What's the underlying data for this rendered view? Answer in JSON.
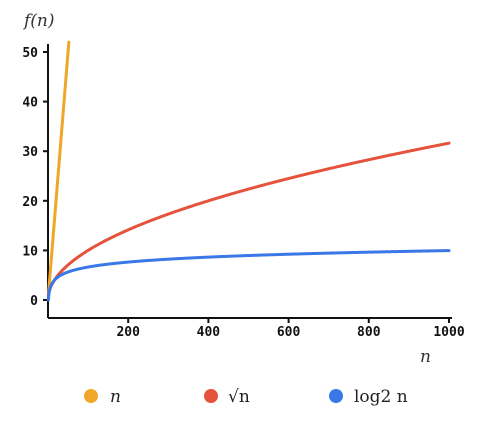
{
  "chart_data": {
    "type": "line",
    "ylabel": "f(n)",
    "xlabel": "n",
    "xlim": [
      0,
      1010
    ],
    "ylim": [
      -3.5,
      52
    ],
    "x_ticks": [
      200,
      400,
      600,
      800,
      1000
    ],
    "x_tick_labels": [
      "200",
      "400",
      "600",
      "800",
      "1000"
    ],
    "y_ticks": [
      0,
      10,
      20,
      30,
      40,
      50
    ],
    "y_tick_labels": [
      "0",
      "10",
      "20",
      "30",
      "40",
      "50"
    ],
    "grid": false,
    "legend_position": "bottom",
    "series": [
      {
        "name": "n",
        "color": "#f0a629",
        "function": "n",
        "x": [
          1,
          10,
          20,
          30,
          40,
          50
        ],
        "y": [
          1,
          10,
          20,
          30,
          40,
          50
        ]
      },
      {
        "name": "√n",
        "color": "#e5533d",
        "function": "sqrt",
        "x": [
          1,
          100,
          200,
          400,
          600,
          800,
          1000
        ],
        "y": [
          1,
          10,
          14.1,
          20,
          24.5,
          28.3,
          31.6
        ]
      },
      {
        "name": "log2 n",
        "color": "#3a78e8",
        "function": "log2",
        "x": [
          1,
          10,
          100,
          200,
          400,
          600,
          800,
          1000
        ],
        "y": [
          0,
          3.3,
          6.6,
          7.6,
          8.6,
          9.2,
          9.6,
          10
        ]
      }
    ]
  },
  "legend": [
    {
      "name": "n",
      "color": "#f0a629"
    },
    {
      "name": "√n",
      "color": "#e5533d"
    },
    {
      "name": "log2 n",
      "color": "#3a78e8"
    }
  ]
}
